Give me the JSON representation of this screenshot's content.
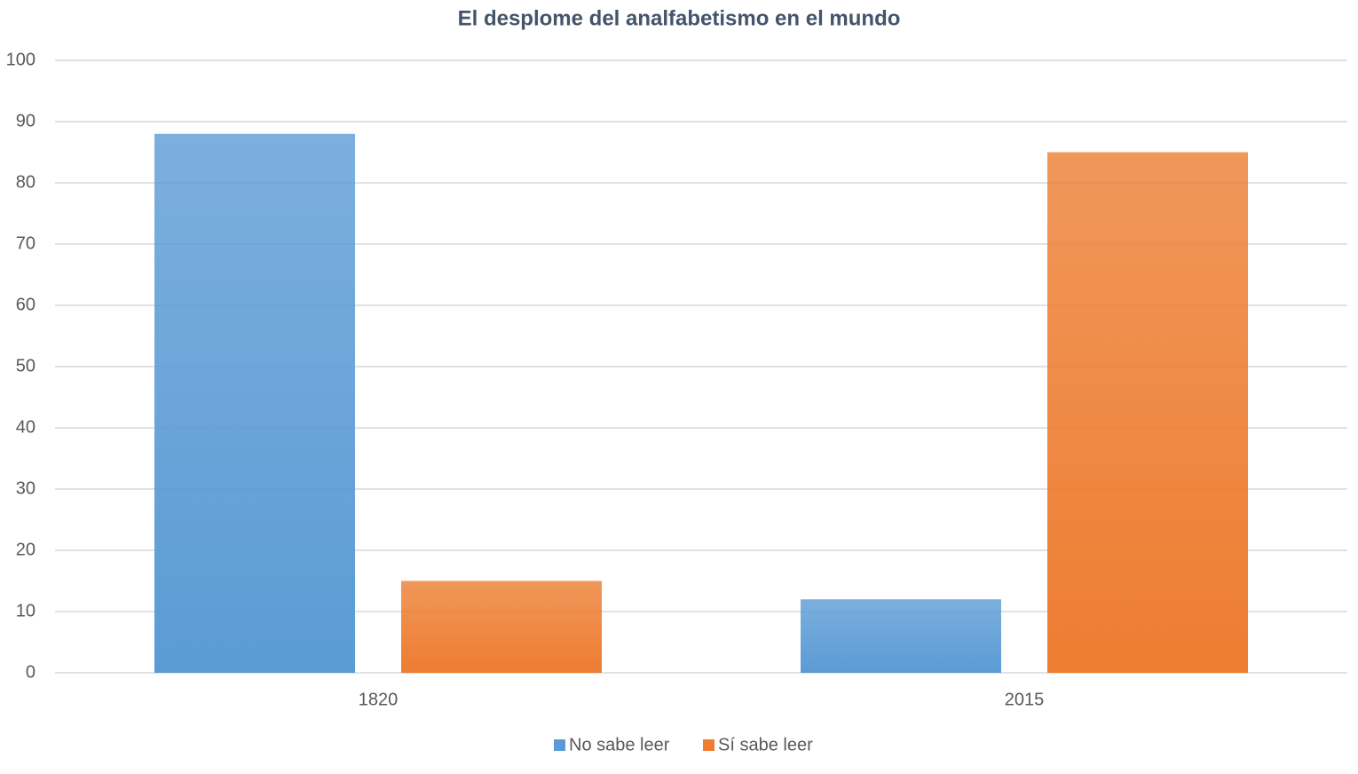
{
  "chart_data": {
    "type": "bar",
    "title": "El desplome del analfabetismo en el mundo",
    "categories": [
      "1820",
      "2015"
    ],
    "series": [
      {
        "name": "No sabe leer",
        "color": "#5b9bd5",
        "values": [
          88,
          12
        ]
      },
      {
        "name": "Sí sabe leer",
        "color": "#ed7d31",
        "values": [
          15,
          85
        ]
      }
    ],
    "ylim": [
      0,
      100
    ],
    "yticks": [
      0,
      10,
      20,
      30,
      40,
      50,
      60,
      70,
      80,
      90,
      100
    ],
    "grid": true,
    "legend": "bottom"
  }
}
